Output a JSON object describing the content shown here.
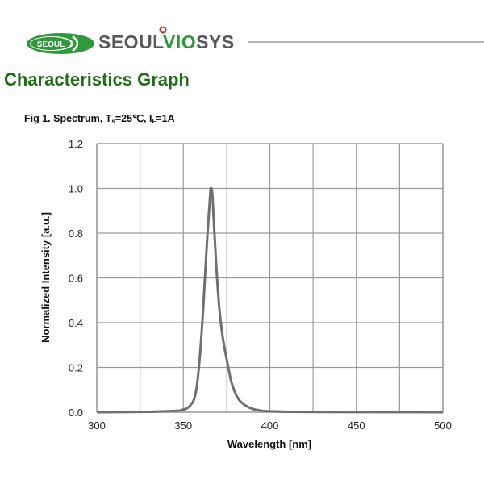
{
  "header": {
    "logo_oval_text": "SEOUL",
    "brand_prefix": "SEOUL",
    "brand_highlight": "VIO",
    "brand_suffix": "SYS",
    "colors": {
      "green": "#2f9a3c",
      "gray": "#595959",
      "title_green": "#1f6e16",
      "logo_dot": "#c0282d"
    }
  },
  "page_title": "Characteristics Graph",
  "figure": {
    "prefix": "Fig 1. Spectrum, T",
    "sub1": "s",
    "mid": "=25℃, I",
    "sub2": "F",
    "suffix": "=1A"
  },
  "chart_data": {
    "type": "line",
    "title": "Fig 1. Spectrum, Ts=25℃, IF=1A",
    "xlabel": "Wavelength [nm]",
    "ylabel": "Normalized Intensity [a.u.]",
    "xlim": [
      300,
      500
    ],
    "ylim": [
      0.0,
      1.2
    ],
    "x_ticks": [
      "300",
      "350",
      "400",
      "450",
      "500"
    ],
    "y_ticks": [
      "0.0",
      "0.2",
      "0.4",
      "0.6",
      "0.8",
      "1.0",
      "1.2"
    ],
    "grid": true,
    "x_grid_step": 25,
    "y_grid_step": 0.2,
    "series": [
      {
        "name": "Spectrum",
        "color": "#707070",
        "x": [
          300,
          330,
          345,
          350,
          354,
          357,
          359,
          361,
          362.5,
          364,
          365.5,
          366,
          366.8,
          368,
          369.5,
          371,
          372.5,
          374,
          376,
          378,
          381,
          385,
          390,
          395,
          400,
          410,
          430,
          500
        ],
        "y": [
          0.0,
          0.002,
          0.006,
          0.012,
          0.03,
          0.08,
          0.2,
          0.4,
          0.6,
          0.8,
          0.97,
          1.0,
          0.97,
          0.8,
          0.6,
          0.45,
          0.35,
          0.28,
          0.2,
          0.13,
          0.07,
          0.035,
          0.015,
          0.007,
          0.004,
          0.002,
          0.001,
          0.0
        ]
      }
    ]
  }
}
